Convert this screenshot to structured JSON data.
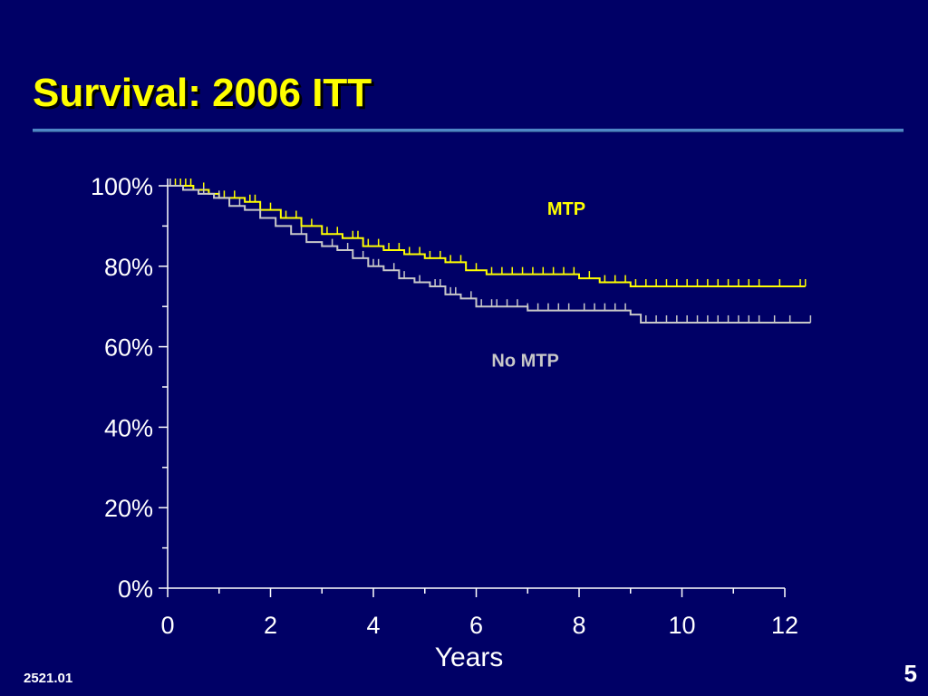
{
  "slide": {
    "title": "Survival: 2006 ITT",
    "footer_code": "2521.01",
    "page_number": "5"
  },
  "colors": {
    "background": "#000066",
    "title": "#ffff00",
    "rule": "#4f86c6",
    "axis": "#ffffff",
    "mtp": "#ffff00",
    "no_mtp": "#c8c8c8"
  },
  "chart_data": {
    "type": "line",
    "step": true,
    "xlabel": "Years",
    "ylabel": "",
    "xlim": [
      0,
      12
    ],
    "ylim": [
      0,
      100
    ],
    "x_ticks": [
      0,
      2,
      4,
      6,
      8,
      10,
      12
    ],
    "x_tick_labels": [
      "0",
      "2",
      "4",
      "6",
      "8",
      "10",
      "12"
    ],
    "y_ticks": [
      0,
      20,
      40,
      60,
      80,
      100
    ],
    "y_tick_labels": [
      "0%",
      "20%",
      "40%",
      "60%",
      "80%",
      "100%"
    ],
    "grid": false,
    "series": [
      {
        "name": "MTP",
        "color": "#ffff00",
        "x": [
          0,
          0.5,
          0.8,
          1.0,
          1.5,
          1.8,
          2.2,
          2.6,
          3.0,
          3.4,
          3.8,
          4.2,
          4.6,
          5.0,
          5.4,
          5.8,
          6.2,
          6.6,
          7.0,
          7.6,
          8.0,
          8.4,
          9.0,
          10.0,
          11.0,
          12.4
        ],
        "y": [
          100,
          99,
          98,
          97,
          96,
          94,
          92,
          90,
          88,
          87,
          85,
          84,
          83,
          82,
          81,
          79,
          78,
          78,
          78,
          78,
          77,
          76,
          75,
          75,
          75,
          75
        ],
        "censor_x": [
          0.05,
          0.15,
          0.25,
          0.35,
          0.45,
          0.7,
          1.1,
          1.3,
          1.6,
          1.7,
          2.0,
          2.3,
          2.5,
          2.8,
          3.1,
          3.3,
          3.6,
          3.7,
          3.9,
          4.1,
          4.3,
          4.5,
          4.7,
          4.9,
          5.1,
          5.3,
          5.5,
          5.7,
          6.0,
          6.3,
          6.5,
          6.7,
          6.9,
          7.1,
          7.3,
          7.5,
          7.7,
          7.9,
          8.2,
          8.5,
          8.7,
          8.9,
          9.1,
          9.3,
          9.5,
          9.7,
          9.9,
          10.1,
          10.3,
          10.5,
          10.7,
          10.9,
          11.1,
          11.3,
          11.5,
          11.9,
          12.3,
          12.4
        ]
      },
      {
        "name": "No MTP",
        "color": "#c8c8c8",
        "x": [
          0,
          0.3,
          0.6,
          0.9,
          1.2,
          1.5,
          1.8,
          2.1,
          2.4,
          2.7,
          3.0,
          3.3,
          3.6,
          3.9,
          4.2,
          4.5,
          4.8,
          5.1,
          5.4,
          5.7,
          6.0,
          6.5,
          7.0,
          8.0,
          9.0,
          9.2,
          10.0,
          11.0,
          12.5
        ],
        "y": [
          100,
          99,
          98,
          97,
          95,
          94,
          92,
          90,
          88,
          86,
          85,
          84,
          82,
          80,
          79,
          77,
          76,
          75,
          73,
          72,
          70,
          70,
          69,
          69,
          68,
          66,
          66,
          66,
          66
        ],
        "censor_x": [
          0.05,
          0.7,
          1.0,
          1.4,
          2.6,
          3.2,
          3.5,
          3.8,
          4.0,
          4.1,
          4.4,
          4.6,
          4.9,
          5.2,
          5.3,
          5.5,
          5.6,
          5.9,
          6.1,
          6.3,
          6.4,
          6.6,
          6.8,
          7.0,
          7.2,
          7.4,
          7.6,
          7.8,
          8.1,
          8.3,
          8.5,
          8.7,
          8.9,
          9.3,
          9.5,
          9.7,
          9.9,
          10.1,
          10.3,
          10.5,
          10.7,
          10.9,
          11.1,
          11.3,
          11.5,
          11.8,
          12.1,
          12.5
        ]
      }
    ],
    "annotations": [
      {
        "text": "MTP",
        "series": "MTP"
      },
      {
        "text": "No MTP",
        "series": "No MTP"
      }
    ]
  }
}
